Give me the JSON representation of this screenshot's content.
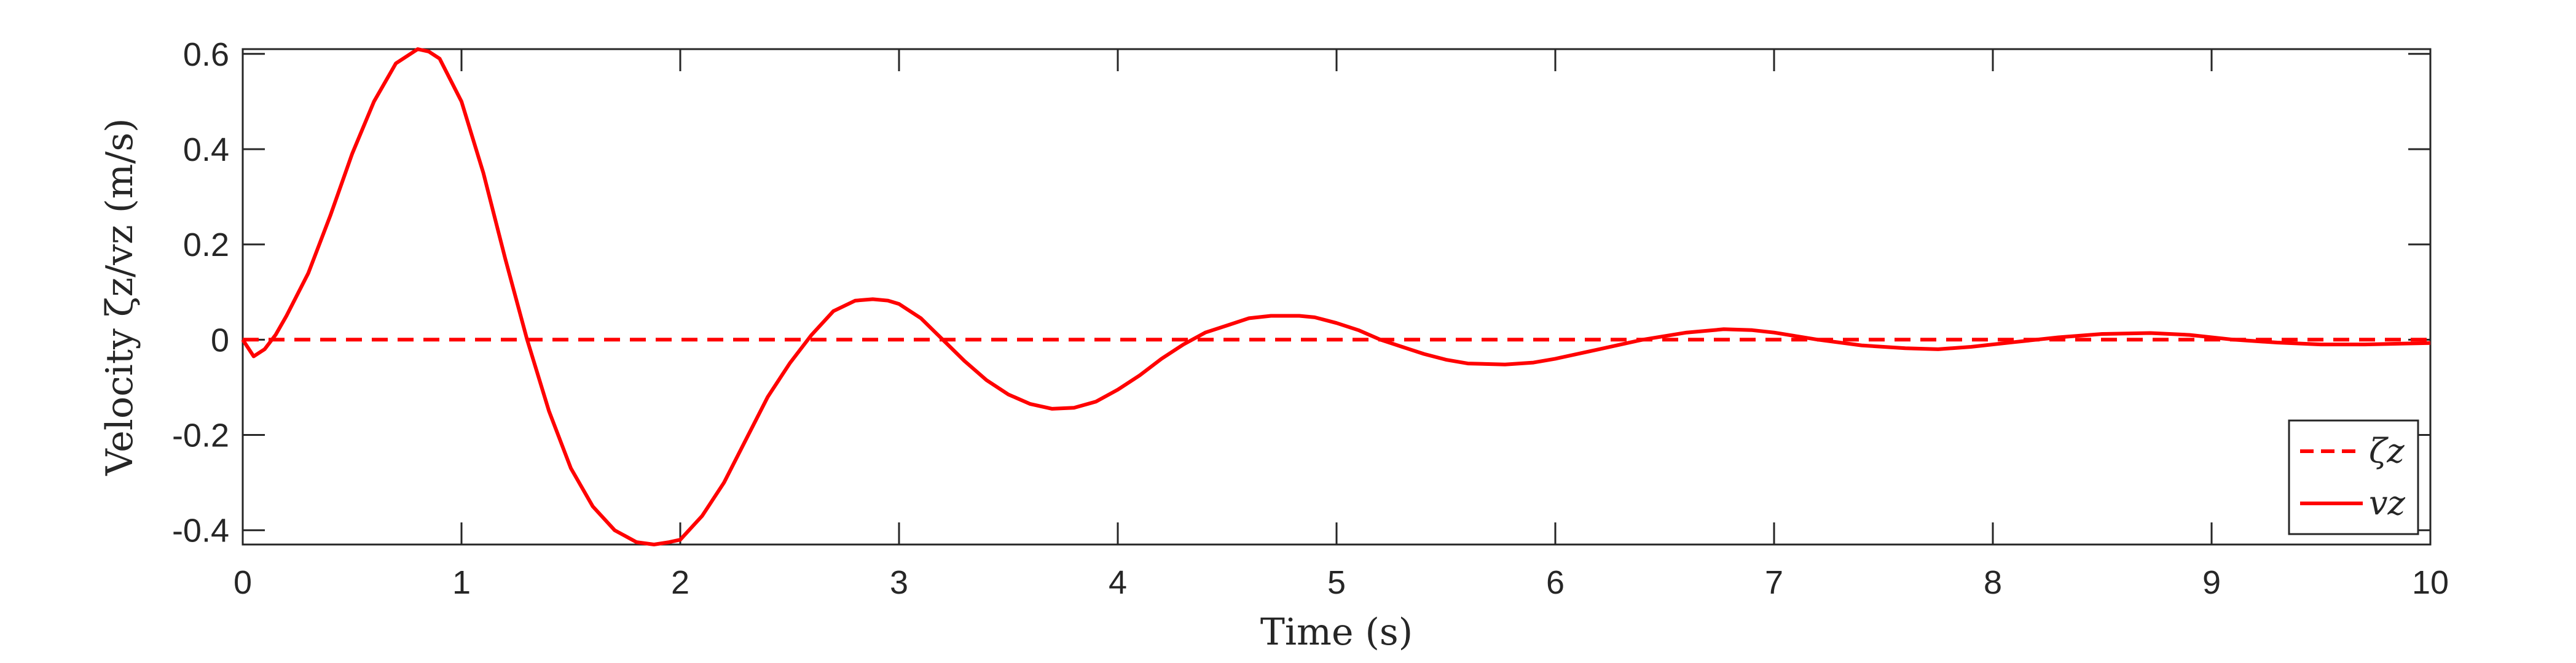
{
  "chart_data": {
    "type": "line",
    "title": "",
    "xlabel": "Time (s)",
    "ylabel": "Velocity ζz/vz (m/s)",
    "xlim": [
      0,
      10
    ],
    "ylim": [
      -0.43,
      0.61
    ],
    "xticks": [
      0,
      1,
      2,
      3,
      4,
      5,
      6,
      7,
      8,
      9,
      10
    ],
    "xtick_labels": [
      "0",
      "1",
      "2",
      "3",
      "4",
      "5",
      "6",
      "7",
      "8",
      "9",
      "10"
    ],
    "yticks": [
      -0.4,
      -0.2,
      0,
      0.2,
      0.4,
      0.6
    ],
    "ytick_labels": [
      "-0.4",
      "-0.2",
      "0",
      "0.2",
      "0.4",
      "0.6"
    ],
    "grid": false,
    "legend_position": "bottom-right",
    "series": [
      {
        "name": "ζz",
        "color": "#ff0000",
        "style": "dashed",
        "x": [
          0,
          10
        ],
        "y": [
          0,
          0
        ]
      },
      {
        "name": "vz",
        "color": "#ff0000",
        "style": "solid",
        "x": [
          0,
          0.05,
          0.1,
          0.15,
          0.2,
          0.3,
          0.4,
          0.5,
          0.6,
          0.7,
          0.8,
          0.85,
          0.9,
          1.0,
          1.1,
          1.2,
          1.3,
          1.4,
          1.5,
          1.6,
          1.7,
          1.8,
          1.88,
          1.95,
          2.0,
          2.1,
          2.2,
          2.3,
          2.4,
          2.5,
          2.6,
          2.7,
          2.8,
          2.88,
          2.95,
          3.0,
          3.1,
          3.2,
          3.3,
          3.4,
          3.5,
          3.6,
          3.7,
          3.8,
          3.9,
          4.0,
          4.1,
          4.2,
          4.3,
          4.4,
          4.5,
          4.6,
          4.7,
          4.83,
          4.9,
          5.0,
          5.1,
          5.2,
          5.3,
          5.4,
          5.5,
          5.6,
          5.77,
          5.9,
          6.0,
          6.2,
          6.4,
          6.6,
          6.77,
          6.9,
          7.0,
          7.2,
          7.4,
          7.6,
          7.75,
          7.9,
          8.1,
          8.3,
          8.5,
          8.72,
          8.9,
          9.1,
          9.3,
          9.5,
          9.7,
          9.9,
          10.0
        ],
        "y": [
          0,
          -0.035,
          -0.02,
          0.01,
          0.05,
          0.14,
          0.26,
          0.39,
          0.5,
          0.58,
          0.61,
          0.605,
          0.59,
          0.5,
          0.35,
          0.17,
          0.0,
          -0.15,
          -0.27,
          -0.35,
          -0.4,
          -0.425,
          -0.43,
          -0.425,
          -0.42,
          -0.37,
          -0.3,
          -0.21,
          -0.12,
          -0.05,
          0.01,
          0.06,
          0.082,
          0.085,
          0.082,
          0.075,
          0.045,
          0.0,
          -0.045,
          -0.085,
          -0.115,
          -0.135,
          -0.145,
          -0.143,
          -0.13,
          -0.105,
          -0.075,
          -0.04,
          -0.01,
          0.015,
          0.03,
          0.045,
          0.05,
          0.05,
          0.047,
          0.035,
          0.02,
          0.0,
          -0.015,
          -0.03,
          -0.042,
          -0.05,
          -0.052,
          -0.048,
          -0.04,
          -0.02,
          0.0,
          0.015,
          0.022,
          0.02,
          0.015,
          0.0,
          -0.012,
          -0.018,
          -0.02,
          -0.015,
          -0.005,
          0.005,
          0.012,
          0.014,
          0.01,
          0.0,
          -0.006,
          -0.01,
          -0.01,
          -0.008,
          -0.007
        ]
      }
    ]
  }
}
